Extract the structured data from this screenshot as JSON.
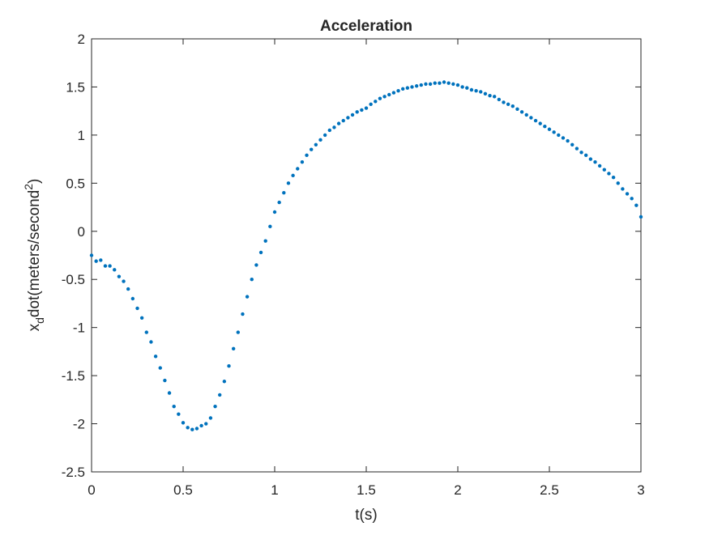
{
  "chart_data": {
    "type": "scatter",
    "title": "Acceleration",
    "xlabel": "t(s)",
    "ylabel": [
      "x",
      "d",
      "dot(meters/second",
      "2",
      ")"
    ],
    "color": "#0072bd",
    "xlim": [
      0,
      3
    ],
    "xticks": [
      0,
      0.5,
      1,
      1.5,
      2,
      2.5,
      3
    ],
    "ylim": [
      -2.5,
      2
    ],
    "yticks": [
      -2.5,
      -2,
      -1.5,
      -1,
      -0.5,
      0,
      0.5,
      1,
      1.5,
      2
    ],
    "x": [
      0,
      0.025,
      0.05,
      0.075,
      0.1,
      0.125,
      0.15,
      0.175,
      0.2,
      0.225,
      0.25,
      0.275,
      0.3,
      0.325,
      0.35,
      0.375,
      0.4,
      0.425,
      0.45,
      0.475,
      0.5,
      0.525,
      0.55,
      0.575,
      0.6,
      0.625,
      0.65,
      0.675,
      0.7,
      0.725,
      0.75,
      0.775,
      0.8,
      0.825,
      0.85,
      0.875,
      0.9,
      0.925,
      0.95,
      0.975,
      1,
      1.025,
      1.05,
      1.075,
      1.1,
      1.125,
      1.15,
      1.175,
      1.2,
      1.225,
      1.25,
      1.275,
      1.3,
      1.325,
      1.35,
      1.375,
      1.4,
      1.425,
      1.45,
      1.475,
      1.5,
      1.525,
      1.55,
      1.575,
      1.6,
      1.625,
      1.65,
      1.675,
      1.7,
      1.725,
      1.75,
      1.775,
      1.8,
      1.825,
      1.85,
      1.875,
      1.9,
      1.925,
      1.95,
      1.975,
      2,
      2.025,
      2.05,
      2.075,
      2.1,
      2.125,
      2.15,
      2.175,
      2.2,
      2.225,
      2.25,
      2.275,
      2.3,
      2.325,
      2.35,
      2.375,
      2.4,
      2.425,
      2.45,
      2.475,
      2.5,
      2.525,
      2.55,
      2.575,
      2.6,
      2.625,
      2.65,
      2.675,
      2.7,
      2.725,
      2.75,
      2.775,
      2.8,
      2.825,
      2.85,
      2.875,
      2.9,
      2.925,
      2.95,
      2.975,
      3
    ],
    "values": [
      -0.25,
      -0.31,
      -0.3,
      -0.36,
      -0.36,
      -0.4,
      -0.47,
      -0.52,
      -0.6,
      -0.7,
      -0.8,
      -0.9,
      -1.05,
      -1.15,
      -1.3,
      -1.42,
      -1.55,
      -1.68,
      -1.82,
      -1.9,
      -1.99,
      -2.04,
      -2.06,
      -2.05,
      -2.02,
      -2.0,
      -1.94,
      -1.82,
      -1.7,
      -1.56,
      -1.4,
      -1.22,
      -1.05,
      -0.86,
      -0.68,
      -0.5,
      -0.35,
      -0.22,
      -0.1,
      0.05,
      0.2,
      0.3,
      0.4,
      0.5,
      0.58,
      0.65,
      0.72,
      0.79,
      0.85,
      0.9,
      0.95,
      1.0,
      1.05,
      1.08,
      1.12,
      1.15,
      1.18,
      1.21,
      1.24,
      1.26,
      1.28,
      1.32,
      1.35,
      1.38,
      1.4,
      1.42,
      1.44,
      1.46,
      1.48,
      1.49,
      1.5,
      1.51,
      1.52,
      1.53,
      1.53,
      1.54,
      1.54,
      1.55,
      1.54,
      1.53,
      1.52,
      1.5,
      1.49,
      1.47,
      1.46,
      1.45,
      1.43,
      1.41,
      1.4,
      1.37,
      1.34,
      1.32,
      1.3,
      1.27,
      1.24,
      1.21,
      1.18,
      1.15,
      1.12,
      1.09,
      1.06,
      1.03,
      1.0,
      0.97,
      0.94,
      0.9,
      0.86,
      0.82,
      0.79,
      0.75,
      0.72,
      0.68,
      0.64,
      0.6,
      0.56,
      0.5,
      0.44,
      0.39,
      0.34,
      0.27,
      0.15
    ]
  }
}
